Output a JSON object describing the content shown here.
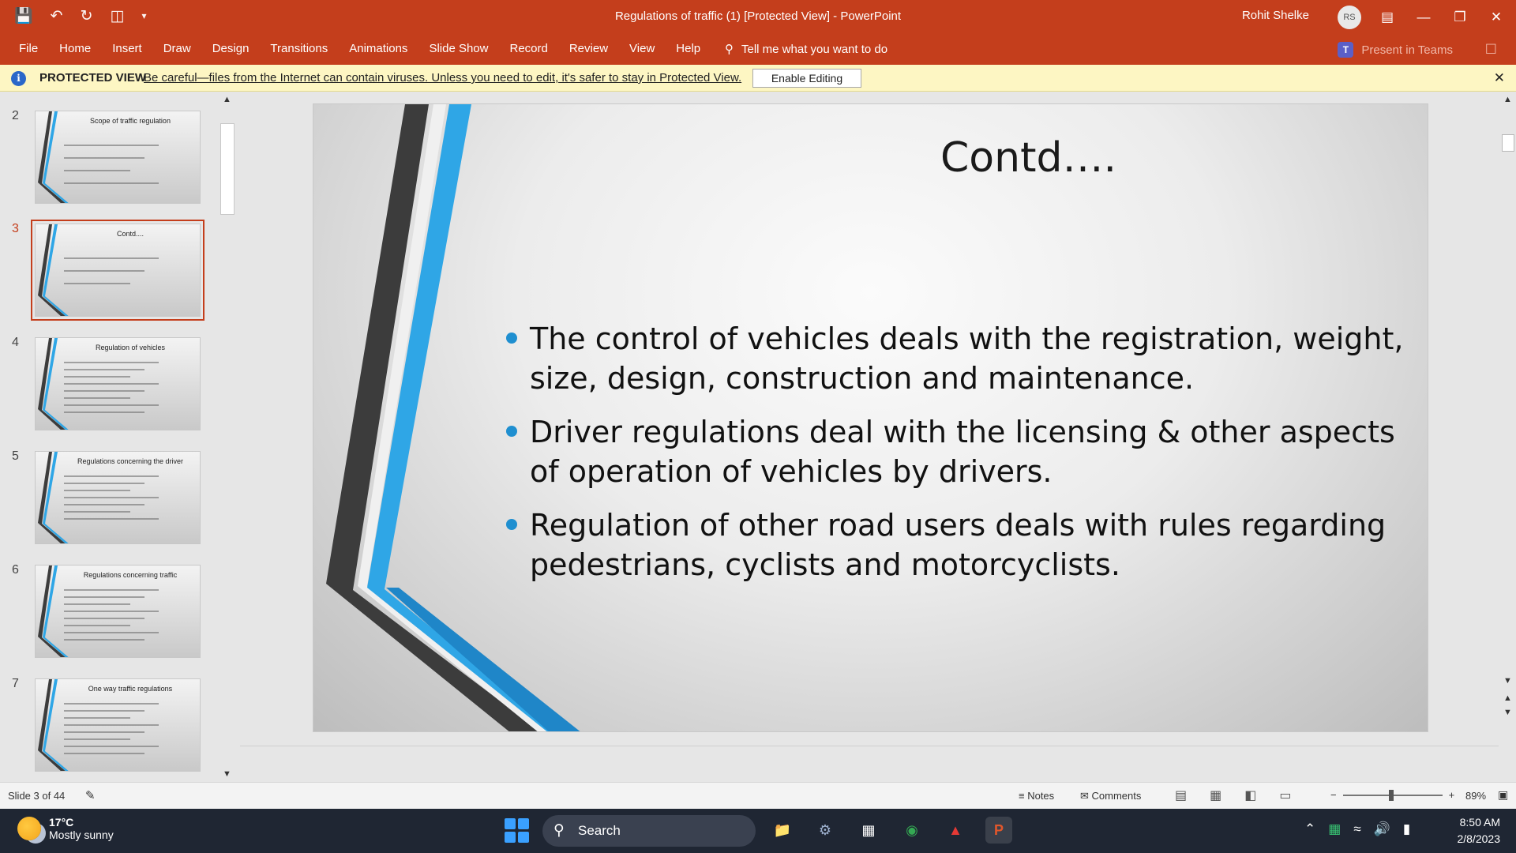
{
  "titlebar": {
    "title": "Regulations of traffic (1) [Protected View]  -  PowerPoint",
    "user_name": "Rohit Shelke",
    "user_initials": "RS"
  },
  "ribbon": {
    "tabs": [
      "File",
      "Home",
      "Insert",
      "Draw",
      "Design",
      "Transitions",
      "Animations",
      "Slide Show",
      "Record",
      "Review",
      "View",
      "Help"
    ],
    "tell_me": "Tell me what you want to do",
    "present_in_teams": "Present in Teams"
  },
  "protected_view": {
    "label": "PROTECTED VIEW",
    "message": "Be careful—files from the Internet can contain viruses. Unless you need to edit, it's safer to stay in Protected View.",
    "enable_button": "Enable Editing"
  },
  "thumbnails": [
    {
      "number": "2",
      "title": "Scope of traffic regulation",
      "lines": 4
    },
    {
      "number": "3",
      "title": "Contd....",
      "lines": 3,
      "selected": true
    },
    {
      "number": "4",
      "title": "Regulation of vehicles",
      "lines": 8
    },
    {
      "number": "5",
      "title": "Regulations concerning the driver",
      "lines": 7
    },
    {
      "number": "6",
      "title": "Regulations concerning traffic",
      "lines": 8
    },
    {
      "number": "7",
      "title": "One way traffic regulations",
      "lines": 8
    }
  ],
  "slide": {
    "title": "Contd….",
    "bullets": [
      "The control of vehicles deals with the registration, weight, size, design, construction and maintenance.",
      "Driver regulations deal with the licensing & other aspects of operation of vehicles by drivers.",
      "Regulation of other road users deals with rules regarding pedestrians, cyclists and motorcyclists."
    ]
  },
  "status": {
    "slide_counter": "Slide 3 of 44",
    "notes": "Notes",
    "comments": "Comments",
    "zoom": "89%"
  },
  "taskbar": {
    "temperature": "17°C",
    "weather": "Mostly sunny",
    "search": "Search",
    "time": "8:50 AM",
    "date": "2/8/2023"
  },
  "colors": {
    "accent": "#c43e1c",
    "bullet": "#1f8fd0",
    "stripe_dark": "#3c3c3c",
    "stripe_blue": "#2fa6e6"
  }
}
